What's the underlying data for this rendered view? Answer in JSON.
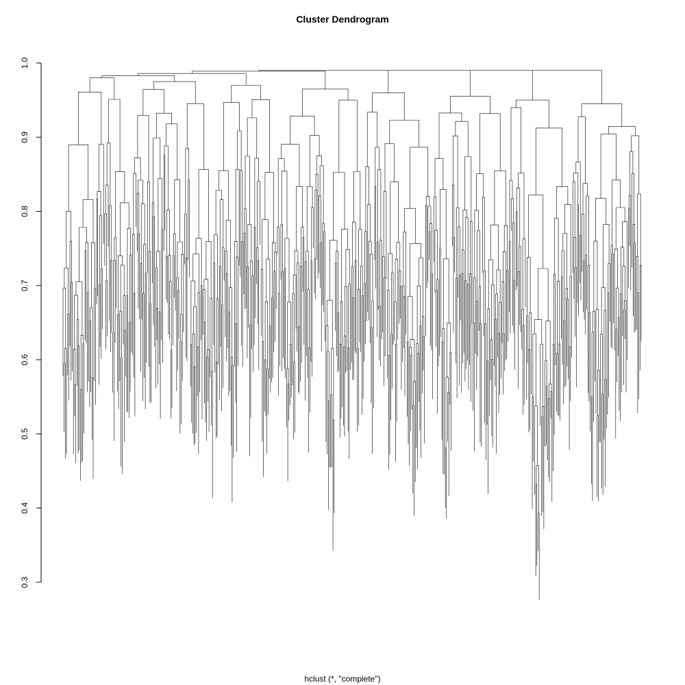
{
  "chart_data": {
    "type": "dendrogram",
    "title": "Cluster Dendrogram",
    "xlabel": "hclust (*, \"complete\")",
    "ylabel": "",
    "ylim": [
      0.3,
      1.0
    ],
    "yticks": [
      "0.3",
      "0.4",
      "0.5",
      "0.6",
      "0.7",
      "0.8",
      "0.9",
      "1.0"
    ],
    "root_height": 0.99,
    "leaf_count": 500,
    "min_merge_height": 0.26,
    "top_level_merge_heights": [
      0.99,
      0.985,
      0.98,
      0.975,
      0.97,
      0.965,
      0.96,
      0.955
    ],
    "grid": false,
    "legend": "none"
  }
}
